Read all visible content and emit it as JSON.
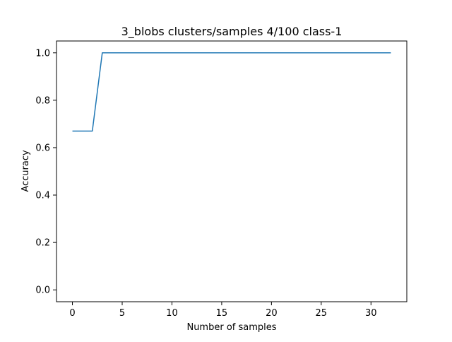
{
  "chart_data": {
    "type": "line",
    "title": "3_blobs clusters/samples 4/100 class-1",
    "xlabel": "Number of samples",
    "ylabel": "Accuracy",
    "xlim": [
      -1.6,
      33.6
    ],
    "ylim": [
      -0.05,
      1.05
    ],
    "xticks": [
      0,
      5,
      10,
      15,
      20,
      25,
      30
    ],
    "yticks": [
      0.0,
      0.2,
      0.4,
      0.6,
      0.8,
      1.0
    ],
    "xtick_labels": [
      "0",
      "5",
      "10",
      "15",
      "20",
      "25",
      "30"
    ],
    "ytick_labels": [
      "0.0",
      "0.2",
      "0.4",
      "0.6",
      "0.8",
      "1.0"
    ],
    "grid": false,
    "legend": "none",
    "series": [
      {
        "color": "#1f77b4",
        "x": [
          0,
          1,
          2,
          3,
          4,
          5,
          6,
          7,
          8,
          9,
          10,
          11,
          12,
          13,
          14,
          15,
          16,
          17,
          18,
          19,
          20,
          21,
          22,
          23,
          24,
          25,
          26,
          27,
          28,
          29,
          30,
          31,
          32
        ],
        "y": [
          0.67,
          0.67,
          0.67,
          1.0,
          1.0,
          1.0,
          1.0,
          1.0,
          1.0,
          1.0,
          1.0,
          1.0,
          1.0,
          1.0,
          1.0,
          1.0,
          1.0,
          1.0,
          1.0,
          1.0,
          1.0,
          1.0,
          1.0,
          1.0,
          1.0,
          1.0,
          1.0,
          1.0,
          1.0,
          1.0,
          1.0,
          1.0,
          1.0
        ]
      }
    ]
  }
}
